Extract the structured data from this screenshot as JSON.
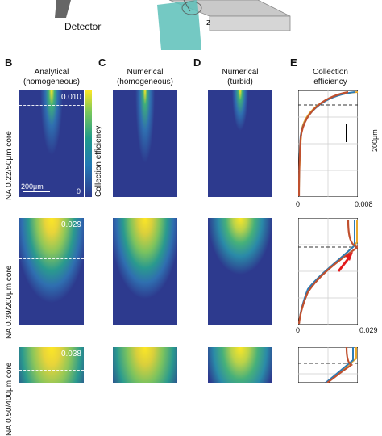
{
  "header": {
    "detector_label": "Detector",
    "axis_z_label": "z"
  },
  "columns": {
    "B": {
      "letter": "B",
      "title_line1": "Analytical",
      "title_line2": "(homogeneous)"
    },
    "C": {
      "letter": "C",
      "title_line1": "Numerical",
      "title_line2": "(homogeneous)"
    },
    "D": {
      "letter": "D",
      "title_line1": "Numerical",
      "title_line2": "(turbid)"
    },
    "E": {
      "letter": "E",
      "title_line1": "Collection",
      "title_line2": "efficiency"
    }
  },
  "colorbar": {
    "label": "Collection efficiency"
  },
  "rows": [
    {
      "label": "NA 0.22/50μm core",
      "max_value": "0.010",
      "zero_label": "0",
      "scale_bar": "200μm",
      "axis_min": "0",
      "axis_max": "0.008",
      "profile_scale": "200μm"
    },
    {
      "label": "NA 0.39/200μm core",
      "max_value": "0.029",
      "axis_min": "0",
      "axis_max": "0.029"
    },
    {
      "label": "NA 0.50/400μm core",
      "max_value": "0.038"
    }
  ],
  "colors": {
    "map_background": "#2d3a8e",
    "map_mid": "#1f9a8a",
    "map_peak": "#fde725",
    "profile_analytical": "#e8a72a",
    "profile_numerical_homogeneous": "#2c7bb6",
    "profile_numerical_turbid": "#c0502e",
    "arrow": "#e31a1c"
  }
}
